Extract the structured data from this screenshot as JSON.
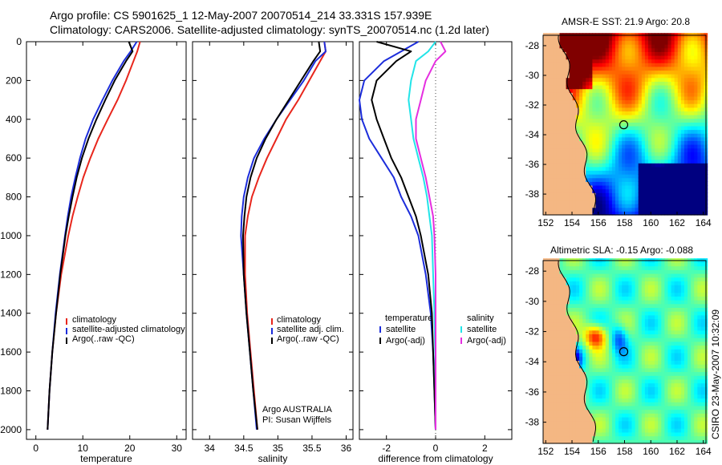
{
  "header": {
    "line1": "Argo profile: CS 5901625_1 12-May-2007 20070514_214 33.331S 157.939E",
    "line2": "Climatology: CARS2006. Satellite-adjusted climatology: synTS_20070514.nc (1.2d later)"
  },
  "credit": {
    "org": "Argo AUSTRALIA",
    "pi": "PI: Susan Wijffels",
    "stamp": "CSIRO 23-May-2007 10:32:09"
  },
  "colors": {
    "climatology": "#e8261c",
    "satellite": "#1c2ddb",
    "argo": "#000000",
    "salinity_sat": "#22e4e8",
    "salinity_argo": "#e52ee0",
    "land": "#f4b783"
  },
  "chart_data": [
    {
      "type": "line",
      "id": "temperature",
      "xlabel": "temperature",
      "ylabel": "",
      "xlim": [
        -2,
        32
      ],
      "ylim": [
        2050,
        0
      ],
      "x_ticks": [
        "0",
        "10",
        "20",
        "30"
      ],
      "x_tick_values": [
        0,
        10,
        20,
        30
      ],
      "y_ticks": [
        "0",
        "200",
        "400",
        "600",
        "800",
        "1000",
        "1200",
        "1400",
        "1600",
        "1800",
        "2000"
      ],
      "y_tick_values": [
        0,
        200,
        400,
        600,
        800,
        1000,
        1200,
        1400,
        1600,
        1800,
        2000
      ],
      "depth": [
        0,
        50,
        100,
        200,
        300,
        400,
        500,
        600,
        700,
        800,
        900,
        1000,
        1200,
        1400,
        1600,
        1800,
        2000
      ],
      "legend": [
        "climatology",
        "satellite-adjusted climatology",
        "Argo(..raw -QC)"
      ],
      "series": [
        {
          "name": "climatology",
          "color": "#e8261c",
          "values": [
            22.2,
            21.6,
            20.8,
            19.2,
            17.4,
            15.3,
            13.3,
            11.6,
            10.1,
            8.9,
            7.8,
            6.9,
            5.4,
            4.3,
            3.5,
            2.9,
            2.5
          ]
        },
        {
          "name": "satellite-adjusted climatology",
          "color": "#1c2ddb",
          "values": [
            21.5,
            20.2,
            18.7,
            16.3,
            14.2,
            12.2,
            10.6,
            9.4,
            8.4,
            7.5,
            6.8,
            6.2,
            5.1,
            4.2,
            3.5,
            2.9,
            2.5
          ]
        },
        {
          "name": "Argo(..raw -QC)",
          "color": "#000000",
          "values": [
            19.8,
            20.6,
            19.2,
            16.8,
            14.8,
            12.9,
            11.2,
            9.8,
            8.7,
            7.8,
            7.0,
            6.3,
            5.2,
            4.3,
            3.5,
            2.9,
            2.5
          ]
        }
      ]
    },
    {
      "type": "line",
      "id": "salinity",
      "xlabel": "salinity",
      "ylabel": "",
      "xlim": [
        33.75,
        36.1
      ],
      "ylim": [
        2050,
        0
      ],
      "x_ticks": [
        "34",
        "34.5",
        "35",
        "35.5",
        "36"
      ],
      "x_tick_values": [
        34,
        34.5,
        35,
        35.5,
        36
      ],
      "depth": [
        0,
        50,
        100,
        200,
        300,
        400,
        500,
        600,
        700,
        800,
        900,
        1000,
        1200,
        1400,
        1600,
        1800,
        2000
      ],
      "legend": [
        "climatology",
        "satellite adj. clim.",
        "Argo(..raw -QC)"
      ],
      "series": [
        {
          "name": "climatology",
          "color": "#e8261c",
          "values": [
            35.68,
            35.7,
            35.62,
            35.46,
            35.3,
            35.12,
            34.98,
            34.84,
            34.72,
            34.62,
            34.56,
            34.52,
            34.52,
            34.55,
            34.6,
            34.65,
            34.7
          ]
        },
        {
          "name": "satellite adj. clim.",
          "color": "#1c2ddb",
          "values": [
            35.68,
            35.7,
            35.55,
            35.38,
            35.18,
            34.98,
            34.8,
            34.65,
            34.56,
            34.5,
            34.47,
            34.46,
            34.5,
            34.54,
            34.59,
            34.64,
            34.69
          ]
        },
        {
          "name": "Argo(..raw -QC)",
          "color": "#000000",
          "values": [
            35.6,
            35.62,
            35.52,
            35.34,
            35.16,
            34.98,
            34.82,
            34.69,
            34.6,
            34.54,
            34.51,
            34.49,
            34.5,
            34.54,
            34.59,
            34.64,
            34.7
          ]
        }
      ]
    },
    {
      "type": "line",
      "id": "difference",
      "xlabel": "difference from climatology",
      "ylabel": "",
      "xlim": [
        -3.1,
        3.1
      ],
      "ylim": [
        2050,
        0
      ],
      "x_ticks": [
        "-2",
        "0",
        "2"
      ],
      "x_tick_values": [
        -2,
        0,
        2
      ],
      "depth": [
        0,
        50,
        100,
        200,
        300,
        400,
        500,
        600,
        700,
        800,
        900,
        1000,
        1200,
        1400,
        1600,
        1800,
        2000
      ],
      "legend_headers": [
        "temperature",
        "salinity"
      ],
      "legend": [
        "satellite",
        "Argo(-adj)",
        "satellite",
        "Argo(-adj)"
      ],
      "series": [
        {
          "name": "temperature satellite",
          "color": "#1c2ddb",
          "values": [
            -0.7,
            -1.4,
            -2.1,
            -2.9,
            -3.1,
            -3.0,
            -2.7,
            -2.2,
            -1.7,
            -1.4,
            -1.0,
            -0.7,
            -0.4,
            -0.2,
            -0.1,
            -0.05,
            0.0
          ]
        },
        {
          "name": "temperature Argo(-adj)",
          "color": "#000000",
          "values": [
            -2.4,
            -1.0,
            -1.6,
            -2.4,
            -2.6,
            -2.4,
            -2.1,
            -1.8,
            -1.4,
            -1.1,
            -0.8,
            -0.6,
            -0.3,
            -0.15,
            -0.1,
            -0.05,
            0.0
          ]
        },
        {
          "name": "salinity satellite",
          "color": "#22e4e8",
          "values": [
            0.0,
            -0.3,
            -0.8,
            -1.0,
            -1.1,
            -1.0,
            -0.9,
            -0.7,
            -0.5,
            -0.35,
            -0.25,
            -0.15,
            -0.1,
            -0.05,
            -0.02,
            0.0,
            0.0
          ]
        },
        {
          "name": "salinity Argo(-adj)",
          "color": "#e52ee0",
          "values": [
            0.2,
            0.4,
            0.0,
            -0.4,
            -0.6,
            -0.8,
            -0.8,
            -0.6,
            -0.4,
            -0.25,
            -0.1,
            -0.05,
            0.0,
            0.0,
            0.0,
            0.0,
            0.0
          ]
        }
      ]
    },
    {
      "type": "heatmap",
      "id": "sst-map",
      "title": "AMSR-E SST: 21.9 Argo: 20.8",
      "x_ticks": [
        "152",
        "154",
        "156",
        "158",
        "160",
        "162",
        "164"
      ],
      "x_tick_values": [
        152,
        154,
        156,
        158,
        160,
        162,
        164
      ],
      "y_ticks": [
        "-28",
        "-30",
        "-32",
        "-34",
        "-36",
        "-38"
      ],
      "y_tick_values": [
        -28,
        -30,
        -32,
        -34,
        -36,
        -38
      ],
      "xlim": [
        151.8,
        164.2
      ],
      "ylim": [
        -39.4,
        -27.3
      ],
      "float_location": [
        157.939,
        -33.331
      ]
    },
    {
      "type": "heatmap",
      "id": "sla-map",
      "title": "Altimetric SLA: -0.15 Argo: -0.088",
      "x_ticks": [
        "152",
        "154",
        "156",
        "158",
        "160",
        "162",
        "164"
      ],
      "x_tick_values": [
        152,
        154,
        156,
        158,
        160,
        162,
        164
      ],
      "y_ticks": [
        "-28",
        "-30",
        "-32",
        "-34",
        "-36",
        "-38"
      ],
      "y_tick_values": [
        -28,
        -30,
        -32,
        -34,
        -36,
        -38
      ],
      "xlim": [
        151.8,
        164.2
      ],
      "ylim": [
        -39.4,
        -27.3
      ],
      "float_location": [
        157.939,
        -33.331
      ]
    }
  ]
}
